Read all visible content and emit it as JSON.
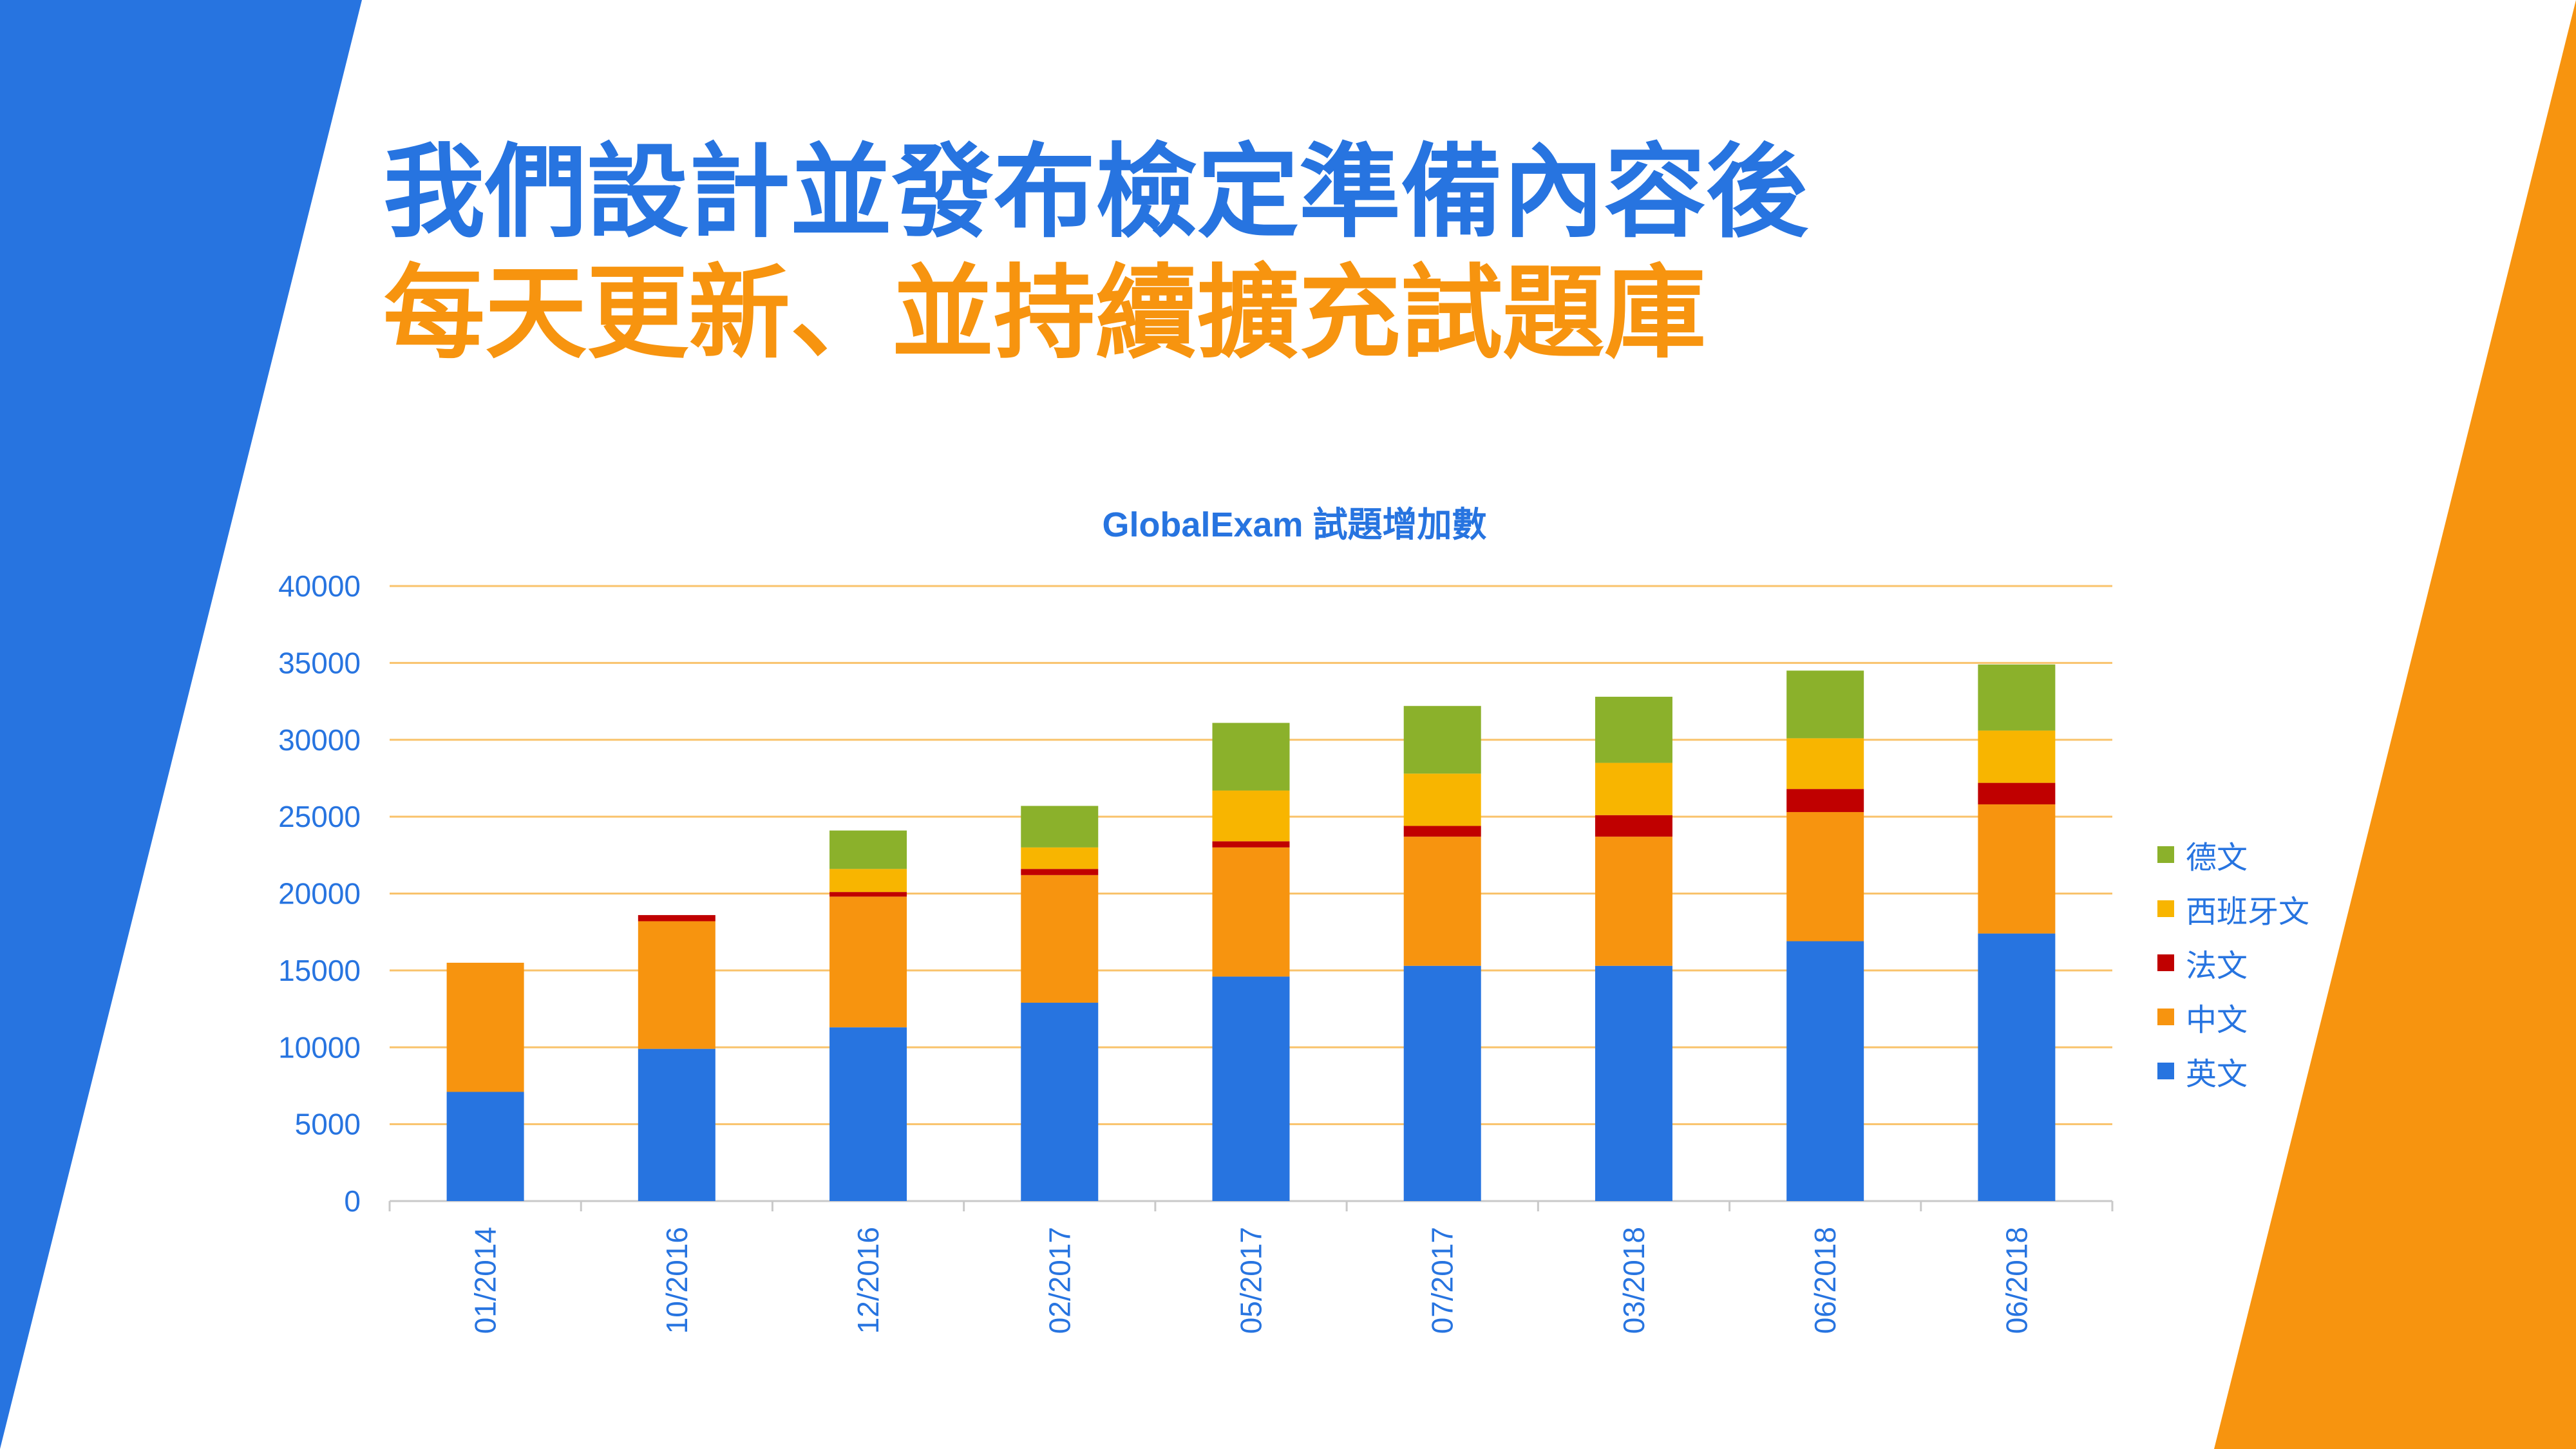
{
  "headline": {
    "line1": "我們設計並發布檢定準備內容後",
    "line2": "每天更新、並持續擴充試題庫"
  },
  "colors": {
    "blue": "#2774e0",
    "orange": "#f7940f",
    "red": "#c00000",
    "yellow": "#f8b500",
    "green": "#8bb12b",
    "grid": "#f9c36c"
  },
  "chart_data": {
    "type": "bar",
    "stacked": true,
    "title": "GlobalExam 試題增加數",
    "xlabel": "",
    "ylabel": "",
    "ylim": [
      0,
      40000
    ],
    "yticks": [
      "0",
      "5000",
      "10000",
      "15000",
      "20000",
      "25000",
      "30000",
      "35000",
      "40000"
    ],
    "categories": [
      "01/2014",
      "10/2016",
      "12/2016",
      "02/2017",
      "05/2017",
      "07/2017",
      "03/2018",
      "06/2018",
      "06/2018"
    ],
    "grid": true,
    "legend_position": "right",
    "series": [
      {
        "name": "英文",
        "color": "#2774e0",
        "values": [
          7100,
          9900,
          11300,
          12900,
          14600,
          15300,
          15300,
          16900,
          17400
        ]
      },
      {
        "name": "中文",
        "color": "#f7940f",
        "values": [
          8400,
          8300,
          8500,
          8300,
          8400,
          8400,
          8400,
          8400,
          8400
        ]
      },
      {
        "name": "法文",
        "color": "#c00000",
        "values": [
          0,
          400,
          300,
          400,
          400,
          700,
          1400,
          1500,
          1400
        ]
      },
      {
        "name": "西班牙文",
        "color": "#f8b500",
        "values": [
          0,
          0,
          1500,
          1400,
          3300,
          3400,
          3400,
          3300,
          3400
        ]
      },
      {
        "name": "德文",
        "color": "#8bb12b",
        "values": [
          0,
          0,
          2500,
          2700,
          4400,
          4400,
          4300,
          4400,
          4300
        ]
      }
    ]
  }
}
